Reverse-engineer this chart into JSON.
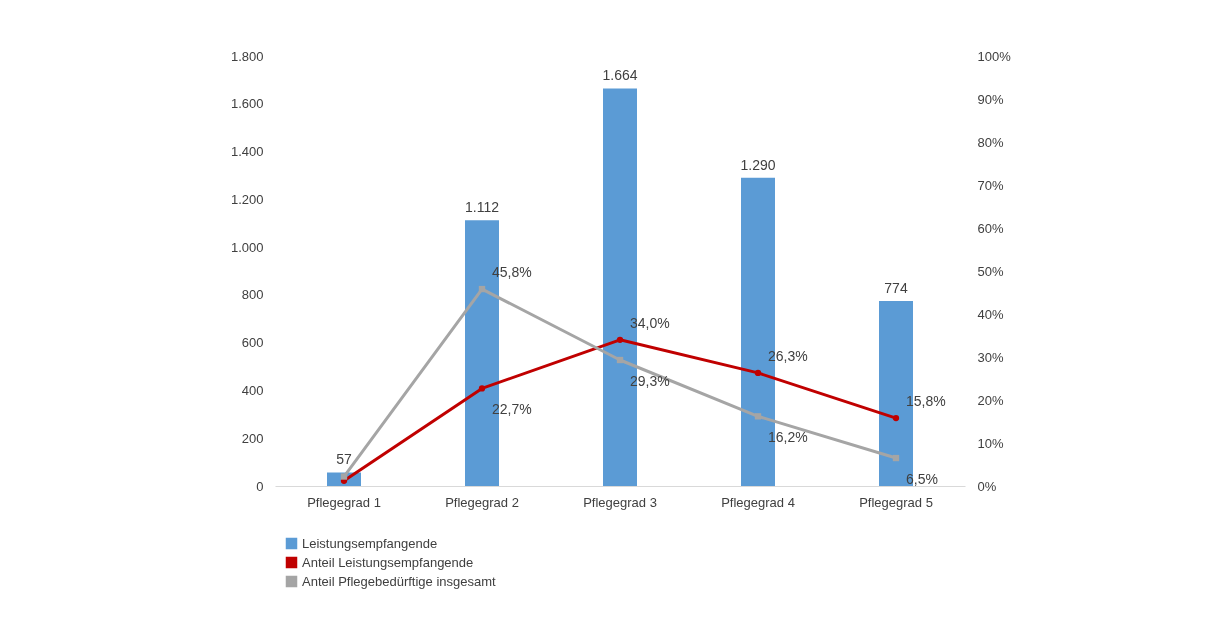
{
  "chart_data": {
    "type": "bar",
    "categories": [
      "Pflegegrad 1",
      "Pflegegrad 2",
      "Pflegegrad 3",
      "Pflegegrad 4",
      "Pflegegrad 5"
    ],
    "series": [
      {
        "name": "Leistungsempfangende",
        "color": "#5b9bd5",
        "values": [
          57,
          1112,
          1664,
          1290,
          774
        ],
        "value_labels": [
          "57",
          "1.112",
          "1.664",
          "1.290",
          "774"
        ]
      },
      {
        "name": "Anteil Leistungsempfangende",
        "type": "line",
        "axis": "y2",
        "marker": "circle",
        "color": "#c00000",
        "values": [
          1.2,
          22.7,
          34.0,
          26.3,
          15.8
        ],
        "value_labels": [
          null,
          "22,7%",
          "34,0%",
          "26,3%",
          "15,8%"
        ]
      },
      {
        "name": "Anteil Pflegebedürftige insgesamt",
        "type": "line",
        "axis": "y2",
        "marker": "square",
        "color": "#a5a5a5",
        "values": [
          2.2,
          45.8,
          29.3,
          16.2,
          6.5
        ],
        "value_labels": [
          null,
          "45,8%",
          "29,3%",
          "16,2%",
          "6,5%"
        ]
      }
    ],
    "ylim": [
      0,
      1800
    ],
    "yticks": [
      0,
      200,
      400,
      600,
      800,
      {
        "value": 1000,
        "label": "1.000"
      },
      {
        "value": 1200,
        "label": "1.200"
      },
      {
        "value": 1400,
        "label": "1.400"
      },
      {
        "value": 1600,
        "label": "1.600"
      },
      {
        "value": 1800,
        "label": "1.800"
      }
    ],
    "y2lim": [
      0,
      100
    ],
    "y2ticks": [
      {
        "value": 0,
        "label": "0%"
      },
      {
        "value": 10,
        "label": "10%"
      },
      {
        "value": 20,
        "label": "20%"
      },
      {
        "value": 30,
        "label": "30%"
      },
      {
        "value": 40,
        "label": "40%"
      },
      {
        "value": 50,
        "label": "50%"
      },
      {
        "value": 60,
        "label": "60%"
      },
      {
        "value": 70,
        "label": "70%"
      },
      {
        "value": 80,
        "label": "80%"
      },
      {
        "value": 90,
        "label": "90%"
      },
      {
        "value": 100,
        "label": "100%"
      }
    ],
    "grid": false,
    "legend": "bottom",
    "line_style": "solid"
  }
}
